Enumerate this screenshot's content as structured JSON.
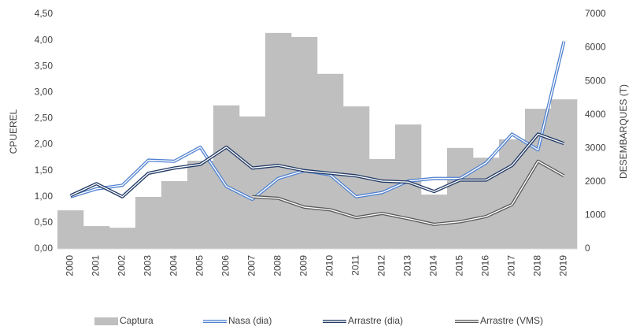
{
  "chart_data": {
    "type": "combo",
    "y_label": "CPUEREL",
    "y2_label": "DESEMBARQUES (T)",
    "categories": [
      "2000",
      "2001",
      "2002",
      "2003",
      "2004",
      "2005",
      "2006",
      "2007",
      "2008",
      "2009",
      "2010",
      "2011",
      "2012",
      "2013",
      "2014",
      "2015",
      "2016",
      "2017",
      "2018",
      "2019"
    ],
    "ylim": [
      0,
      4.5
    ],
    "yticks": [
      {
        "value": 0,
        "label": "0,00"
      },
      {
        "value": 0.5,
        "label": "0,50"
      },
      {
        "value": 1,
        "label": "1,00"
      },
      {
        "value": 1.5,
        "label": "1,50"
      },
      {
        "value": 2,
        "label": "2,00"
      },
      {
        "value": 2.5,
        "label": "2,50"
      },
      {
        "value": 3,
        "label": "3,00"
      },
      {
        "value": 3.5,
        "label": "3,50"
      },
      {
        "value": 4,
        "label": "4,00"
      },
      {
        "value": 4.5,
        "label": "4,50"
      }
    ],
    "y2lim": [
      0,
      7000
    ],
    "y2ticks": [
      0,
      1000,
      2000,
      3000,
      4000,
      5000,
      6000,
      7000
    ],
    "legend": "bottom",
    "series": [
      {
        "name": "Captura",
        "type": "bar",
        "axis": "y2",
        "color": "#bfbfbf",
        "values": [
          1150,
          680,
          630,
          1550,
          2020,
          2630,
          4280,
          3950,
          6440,
          6320,
          5220,
          4250,
          2680,
          3710,
          1620,
          3010,
          2720,
          3270,
          4180,
          4460
        ]
      },
      {
        "name": "Nasa (dia)",
        "type": "line",
        "color": "#4f81d0",
        "values": [
          1.0,
          1.15,
          1.22,
          1.7,
          1.68,
          1.95,
          1.2,
          0.95,
          1.35,
          1.5,
          1.42,
          1.0,
          1.08,
          1.3,
          1.35,
          1.35,
          1.65,
          2.2,
          1.9,
          3.98
        ]
      },
      {
        "name": "Arrastre (dia)",
        "type": "line",
        "color": "#1f3864",
        "values": [
          1.02,
          1.25,
          1.0,
          1.45,
          1.55,
          1.62,
          1.95,
          1.55,
          1.6,
          1.5,
          1.45,
          1.4,
          1.3,
          1.28,
          1.1,
          1.32,
          1.32,
          1.6,
          2.2,
          2.02
        ]
      },
      {
        "name": "Arrastre (VMS)",
        "type": "line",
        "color": "#595959",
        "values": [
          null,
          null,
          null,
          null,
          null,
          null,
          null,
          1.0,
          0.97,
          0.8,
          0.75,
          0.6,
          0.68,
          0.58,
          0.47,
          0.52,
          0.62,
          0.85,
          1.68,
          1.4
        ]
      }
    ]
  }
}
